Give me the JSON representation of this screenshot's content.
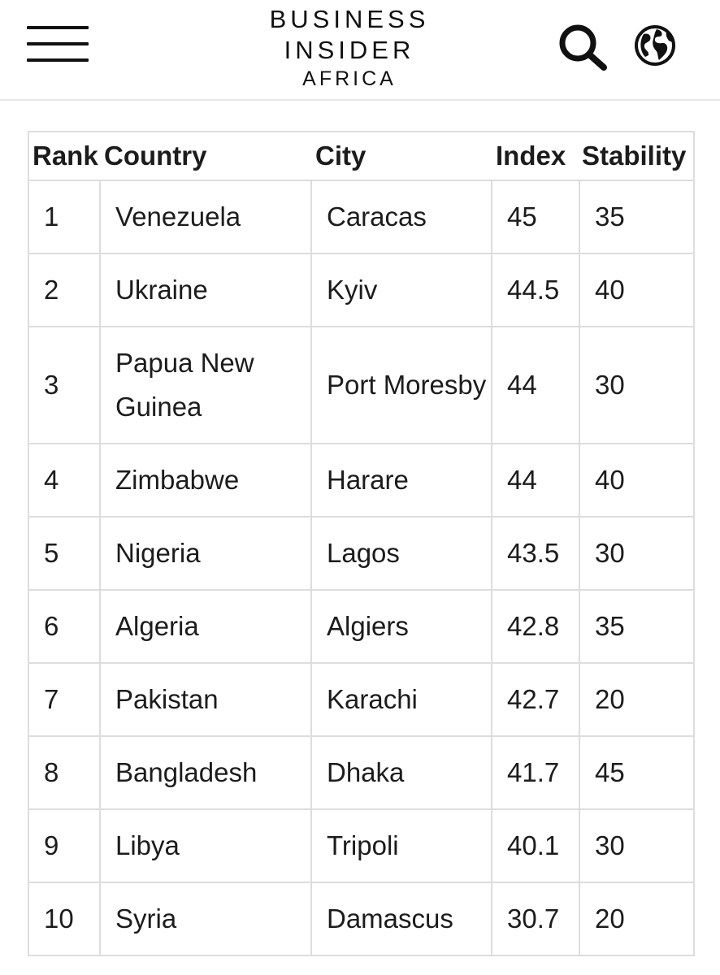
{
  "header": {
    "logo": {
      "line1": "BUSINESS",
      "line2": "INSIDER",
      "line3": "AFRICA"
    },
    "icons": {
      "menu": "hamburger-menu-icon",
      "search": "search-icon",
      "edition": "globe-icon"
    }
  },
  "table": {
    "columns": [
      "Rank",
      "Country",
      "City",
      "Index",
      "Stability"
    ],
    "rows": [
      {
        "rank": "1",
        "country": "Venezuela",
        "city": "Caracas",
        "index": "45",
        "stability": "35"
      },
      {
        "rank": "2",
        "country": "Ukraine",
        "city": "Kyiv",
        "index": "44.5",
        "stability": "40"
      },
      {
        "rank": "3",
        "country": "Papua New Guinea",
        "city": "Port Moresby",
        "index": "44",
        "stability": "30"
      },
      {
        "rank": "4",
        "country": "Zimbabwe",
        "city": "Harare",
        "index": "44",
        "stability": "40"
      },
      {
        "rank": "5",
        "country": "Nigeria",
        "city": "Lagos",
        "index": "43.5",
        "stability": "30"
      },
      {
        "rank": "6",
        "country": "Algeria",
        "city": "Algiers",
        "index": "42.8",
        "stability": "35"
      },
      {
        "rank": "7",
        "country": "Pakistan",
        "city": "Karachi",
        "index": "42.7",
        "stability": "20"
      },
      {
        "rank": "8",
        "country": "Bangladesh",
        "city": "Dhaka",
        "index": "41.7",
        "stability": "45"
      },
      {
        "rank": "9",
        "country": "Libya",
        "city": "Tripoli",
        "index": "40.1",
        "stability": "30"
      },
      {
        "rank": "10",
        "country": "Syria",
        "city": "Damascus",
        "index": "30.7",
        "stability": "20"
      }
    ]
  }
}
